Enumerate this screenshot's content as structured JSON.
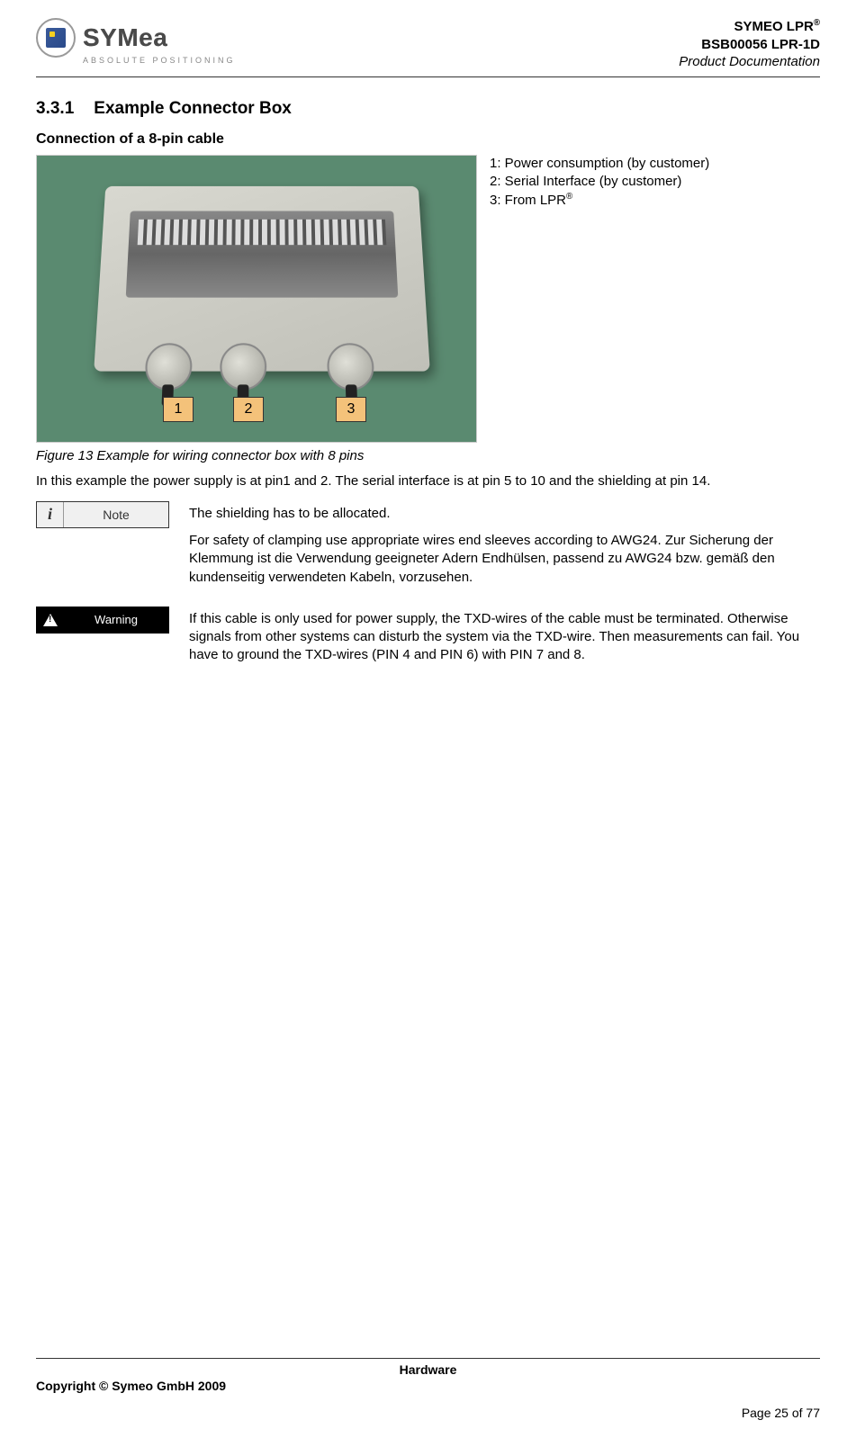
{
  "header": {
    "brand_line1_prefix": "SYMEO LPR",
    "brand_reg": "®",
    "brand_line2": "BSB00056 LPR-1D",
    "brand_line3": "Product Documentation",
    "logo_text": "SYMea",
    "logo_sub": "ABSOLUTE POSITIONING"
  },
  "section": {
    "number": "3.3.1",
    "title": "Example Connector Box",
    "subheading": "Connection of a 8-pin cable"
  },
  "figure": {
    "callouts": [
      "1",
      "2",
      "3"
    ],
    "legend": {
      "item1": "1: Power consumption (by customer)",
      "item2": "2: Serial Interface (by customer)",
      "item3_prefix": "3: From LPR",
      "item3_reg": "®"
    },
    "caption": "Figure 13 Example for wiring connector box with 8 pins",
    "callout_bg": "#f4c27a",
    "photo_bg": "#5a8a70",
    "box_color": "#d0d0c8"
  },
  "body": {
    "para1": "In this example the power supply is at pin1 and 2. The serial interface is at pin 5 to 10 and the shielding at pin 14."
  },
  "note": {
    "label": "Note",
    "icon": "i",
    "text1": "The shielding has to be allocated.",
    "text2": "For safety of clamping use appropriate wires end sleeves according to AWG24. Zur Sicherung der Klemmung ist die Verwendung geeigneter Adern Endhülsen, passend zu AWG24 bzw. gemäß den kundenseitig verwendeten Kabeln, vorzusehen."
  },
  "warning": {
    "label": "Warning",
    "text": "If this cable is only used for power supply, the TXD-wires of the cable must be terminated. Otherwise signals from other systems can disturb the system via the TXD-wire. Then measurements can fail. You have to ground the TXD-wires (PIN 4 and PIN 6) with PIN 7 and 8."
  },
  "footer": {
    "center": "Hardware",
    "copyright": "Copyright © Symeo GmbH 2009",
    "page": "Page 25 of 77"
  },
  "colors": {
    "text": "#000000",
    "rule": "#333333",
    "note_bg": "#f0f0f0",
    "warn_bg": "#000000",
    "warn_fg": "#ffffff"
  }
}
